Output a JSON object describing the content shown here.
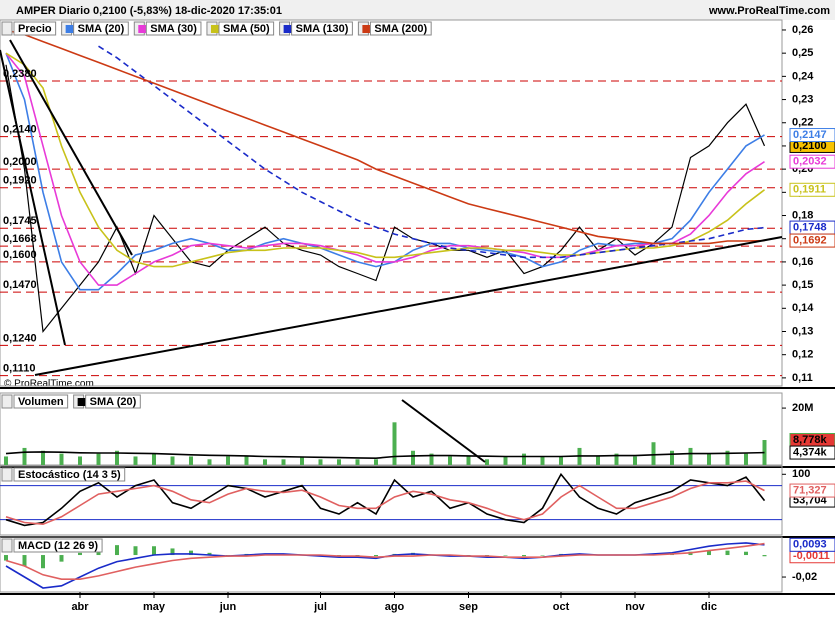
{
  "header": {
    "title": "AMPER Diario 0,2100 (-5,83%) 18-dic-2020 17:35:01",
    "site": "www.ProRealTime.com",
    "copyright": "© ProRealTime.com"
  },
  "chart_data": [
    {
      "type": "line",
      "title": "Precio",
      "categories": [
        null,
        null,
        null,
        null,
        "abr",
        null,
        null,
        null,
        "may",
        null,
        null,
        null,
        "jun",
        null,
        null,
        null,
        null,
        "jul",
        null,
        null,
        null,
        "ago",
        null,
        null,
        null,
        "sep",
        null,
        null,
        null,
        null,
        "oct",
        null,
        null,
        null,
        "nov",
        null,
        null,
        null,
        "dic",
        null,
        null,
        null
      ],
      "ylim": [
        0.1065,
        0.2643
      ],
      "yticks": [
        {
          "value": 0.11,
          "label": "0,11"
        },
        {
          "value": 0.12,
          "label": "0,12"
        },
        {
          "value": 0.13,
          "label": "0,13"
        },
        {
          "value": 0.14,
          "label": "0,14"
        },
        {
          "value": 0.15,
          "label": "0,15"
        },
        {
          "value": 0.16,
          "label": "0,16"
        },
        {
          "value": 0.17,
          "label": "0,17"
        },
        {
          "value": 0.18,
          "label": "0,18"
        },
        {
          "value": 0.19,
          "label": "0,19"
        },
        {
          "value": 0.2,
          "label": "0,20"
        },
        {
          "value": 0.21,
          "label": "0,21"
        },
        {
          "value": 0.22,
          "label": "0,22"
        },
        {
          "value": 0.23,
          "label": "0,23"
        },
        {
          "value": 0.24,
          "label": "0,24"
        },
        {
          "value": 0.25,
          "label": "0,25"
        },
        {
          "value": 0.26,
          "label": "0,26"
        }
      ],
      "levels": [
        {
          "value": 0.238,
          "label": "0,2380"
        },
        {
          "value": 0.214,
          "label": "0,2140"
        },
        {
          "value": 0.2,
          "label": "0,2000"
        },
        {
          "value": 0.192,
          "label": "0,1920"
        },
        {
          "value": 0.1745,
          "label": "0,1745"
        },
        {
          "value": 0.1668,
          "label": "0,1668"
        },
        {
          "value": 0.16,
          "label": "0,1600"
        },
        {
          "value": 0.147,
          "label": "0,1470"
        },
        {
          "value": 0.124,
          "label": "0,1240"
        },
        {
          "value": 0.111,
          "label": "0,1110"
        }
      ],
      "level_color": "#cc0000",
      "series": [
        {
          "name": "Precio",
          "color": "#000000",
          "badge": "#f7c200",
          "last_label": "0,2100",
          "values": [
            0.245,
            0.2,
            0.13,
            0.14,
            0.15,
            0.16,
            0.175,
            0.155,
            0.18,
            0.17,
            0.16,
            0.158,
            0.165,
            0.17,
            0.175,
            0.168,
            0.165,
            0.163,
            0.158,
            0.155,
            0.152,
            0.175,
            0.17,
            0.168,
            0.165,
            0.165,
            0.162,
            0.165,
            0.155,
            0.158,
            0.165,
            0.175,
            0.165,
            0.17,
            0.163,
            0.168,
            0.175,
            0.205,
            0.21,
            0.22,
            0.228,
            0.21
          ]
        },
        {
          "name": "SMA (20)",
          "color": "#3d7ee6",
          "last_label": "0,2147",
          "values": [
            0.25,
            0.23,
            0.19,
            0.16,
            0.148,
            0.148,
            0.155,
            0.163,
            0.165,
            0.168,
            0.17,
            0.168,
            0.165,
            0.165,
            0.168,
            0.17,
            0.168,
            0.166,
            0.163,
            0.16,
            0.158,
            0.16,
            0.165,
            0.168,
            0.168,
            0.166,
            0.165,
            0.164,
            0.162,
            0.158,
            0.16,
            0.165,
            0.168,
            0.167,
            0.168,
            0.168,
            0.17,
            0.178,
            0.19,
            0.2,
            0.21,
            0.2147
          ]
        },
        {
          "name": "SMA (30)",
          "color": "#e83ad8",
          "last_label": "0,2032",
          "values": [
            0.25,
            0.24,
            0.21,
            0.18,
            0.16,
            0.15,
            0.15,
            0.155,
            0.16,
            0.163,
            0.167,
            0.168,
            0.167,
            0.166,
            0.167,
            0.168,
            0.168,
            0.167,
            0.165,
            0.163,
            0.16,
            0.16,
            0.162,
            0.165,
            0.167,
            0.167,
            0.166,
            0.165,
            0.164,
            0.162,
            0.162,
            0.163,
            0.165,
            0.167,
            0.167,
            0.168,
            0.168,
            0.172,
            0.18,
            0.19,
            0.198,
            0.2032
          ]
        },
        {
          "name": "SMA (50)",
          "color": "#c8c21a",
          "last_label": "0,1911",
          "values": [
            0.25,
            0.245,
            0.235,
            0.21,
            0.19,
            0.175,
            0.165,
            0.16,
            0.158,
            0.158,
            0.16,
            0.162,
            0.164,
            0.165,
            0.165,
            0.166,
            0.166,
            0.166,
            0.165,
            0.164,
            0.162,
            0.162,
            0.163,
            0.164,
            0.165,
            0.166,
            0.166,
            0.165,
            0.165,
            0.164,
            0.163,
            0.163,
            0.164,
            0.165,
            0.166,
            0.166,
            0.167,
            0.169,
            0.173,
            0.178,
            0.185,
            0.1911
          ]
        },
        {
          "name": "SMA (130)",
          "color": "#1a2bc9",
          "dashed": true,
          "last_label": "0,1748",
          "values": [
            null,
            null,
            null,
            null,
            null,
            0.253,
            0.248,
            0.242,
            0.236,
            0.23,
            0.224,
            0.218,
            0.212,
            0.206,
            0.2,
            0.195,
            0.19,
            0.186,
            0.182,
            0.178,
            0.175,
            0.172,
            0.17,
            0.168,
            0.166,
            0.165,
            0.164,
            0.163,
            0.162,
            0.162,
            0.162,
            0.163,
            0.164,
            0.165,
            0.166,
            0.167,
            0.168,
            0.169,
            0.17,
            0.172,
            0.174,
            0.1748
          ]
        },
        {
          "name": "SMA (200)",
          "color": "#cc3a14",
          "last_label": "0,1692",
          "values": [
            0.26,
            0.258,
            0.255,
            0.252,
            0.249,
            0.246,
            0.243,
            0.24,
            0.237,
            0.234,
            0.231,
            0.228,
            0.225,
            0.222,
            0.219,
            0.216,
            0.213,
            0.21,
            0.207,
            0.204,
            0.2,
            0.197,
            0.194,
            0.191,
            0.188,
            0.185,
            0.183,
            0.181,
            0.179,
            0.177,
            0.175,
            0.173,
            0.171,
            0.17,
            0.169,
            0.168,
            0.168,
            0.168,
            0.168,
            0.169,
            0.169,
            0.1692
          ]
        }
      ]
    },
    {
      "type": "bar",
      "title": "Volumen",
      "ylim": [
        0,
        25.3
      ],
      "yticks": [
        {
          "value": 20,
          "label": "20M"
        }
      ],
      "series": [
        {
          "color": "#4caf50",
          "badge": "#e53935",
          "last_label": "8,778k",
          "values": [
            3,
            6,
            5,
            4,
            3,
            4,
            5,
            3,
            4,
            3,
            3,
            2,
            3,
            3,
            2,
            2,
            3,
            2,
            2,
            2,
            2,
            15,
            5,
            4,
            3,
            3,
            2,
            3,
            4,
            3,
            3,
            6,
            3,
            4,
            3,
            8,
            5,
            6,
            4,
            5,
            4,
            8.778
          ]
        },
        {
          "name": "SMA (20)",
          "color": "#000000",
          "line": true,
          "last_label": "4,374k",
          "values": [
            4,
            4.5,
            4.6,
            4.5,
            4.3,
            4.2,
            4.2,
            4.1,
            4,
            3.8,
            3.6,
            3.4,
            3.3,
            3.2,
            3,
            2.9,
            2.8,
            2.7,
            2.6,
            2.5,
            2.4,
            3,
            3.2,
            3.3,
            3.3,
            3.2,
            3.1,
            3,
            3,
            3,
            3,
            3.2,
            3.2,
            3.3,
            3.3,
            3.6,
            3.8,
            4,
            4,
            4.1,
            4.2,
            4.374
          ]
        }
      ]
    },
    {
      "type": "line",
      "title": "Estocástico (14 3 5)",
      "ylim": [
        -7,
        114.6
      ],
      "yticks": [
        100
      ],
      "bands": [
        80,
        20
      ],
      "band_color": "#1a2bc9",
      "series": [
        {
          "color": "#000000",
          "last_label": "53,704",
          "values": [
            20,
            10,
            15,
            40,
            70,
            85,
            60,
            80,
            90,
            50,
            40,
            60,
            80,
            75,
            60,
            70,
            80,
            40,
            30,
            50,
            30,
            90,
            60,
            70,
            40,
            50,
            30,
            20,
            15,
            40,
            100,
            60,
            40,
            30,
            50,
            60,
            70,
            90,
            85,
            80,
            95,
            53.704
          ]
        },
        {
          "color": "#e06060",
          "last_label": "71,327",
          "values": [
            25,
            15,
            12,
            25,
            45,
            65,
            70,
            75,
            80,
            70,
            55,
            50,
            65,
            75,
            70,
            68,
            72,
            60,
            45,
            40,
            40,
            60,
            70,
            65,
            55,
            50,
            40,
            28,
            20,
            30,
            60,
            80,
            60,
            40,
            40,
            50,
            60,
            75,
            85,
            85,
            88,
            71.327
          ]
        }
      ]
    },
    {
      "type": "line",
      "title": "MACD (12 26 9)",
      "ylim": [
        -0.0336,
        0.0164
      ],
      "yticks": [
        {
          "value": -0.02,
          "label": "-0,02"
        }
      ],
      "series": [
        {
          "color": "#4caf50",
          "bars": true,
          "badge_color": "#e53935",
          "last_label": "-0,0011",
          "values": [
            -0.005,
            -0.01,
            -0.012,
            -0.006,
            0.002,
            0.007,
            0.009,
            0.008,
            0.008,
            0.006,
            0.004,
            0.002,
            0,
            0.001,
            0.001,
            0.001,
            0,
            -0.001,
            -0.001,
            -0.001,
            -0.001,
            0.001,
            0.002,
            0,
            -0.001,
            0,
            -0.001,
            0,
            -0.001,
            0,
            0.001,
            0.001,
            0,
            0,
            0,
            0.001,
            0.001,
            0.003,
            0.004,
            0.004,
            0.003,
            -0.0011
          ]
        },
        {
          "color": "#1a2bc9",
          "last_label": "0,0093",
          "values": [
            -0.01,
            -0.02,
            -0.03,
            -0.028,
            -0.02,
            -0.012,
            -0.006,
            -0.003,
            0,
            0.001,
            0.001,
            0,
            -0.001,
            0,
            0.001,
            0.001,
            0,
            -0.001,
            -0.002,
            -0.002,
            -0.003,
            0,
            0.001,
            0,
            -0.001,
            -0.001,
            -0.002,
            -0.002,
            -0.003,
            -0.002,
            0,
            0.001,
            0,
            0,
            0,
            0.001,
            0.002,
            0.005,
            0.008,
            0.01,
            0.011,
            0.0093
          ]
        },
        {
          "color": "#e06060",
          "values": [
            -0.005,
            -0.01,
            -0.018,
            -0.022,
            -0.022,
            -0.019,
            -0.015,
            -0.011,
            -0.008,
            -0.005,
            -0.003,
            -0.002,
            -0.001,
            -0.001,
            0,
            0,
            0,
            0,
            -0.001,
            -0.001,
            -0.002,
            -0.001,
            -0.001,
            0,
            0,
            -0.001,
            -0.001,
            -0.002,
            -0.002,
            -0.002,
            -0.001,
            0,
            0,
            0,
            0,
            0,
            0.001,
            0.002,
            0.004,
            0.006,
            0.008,
            0.0104
          ]
        }
      ]
    }
  ]
}
